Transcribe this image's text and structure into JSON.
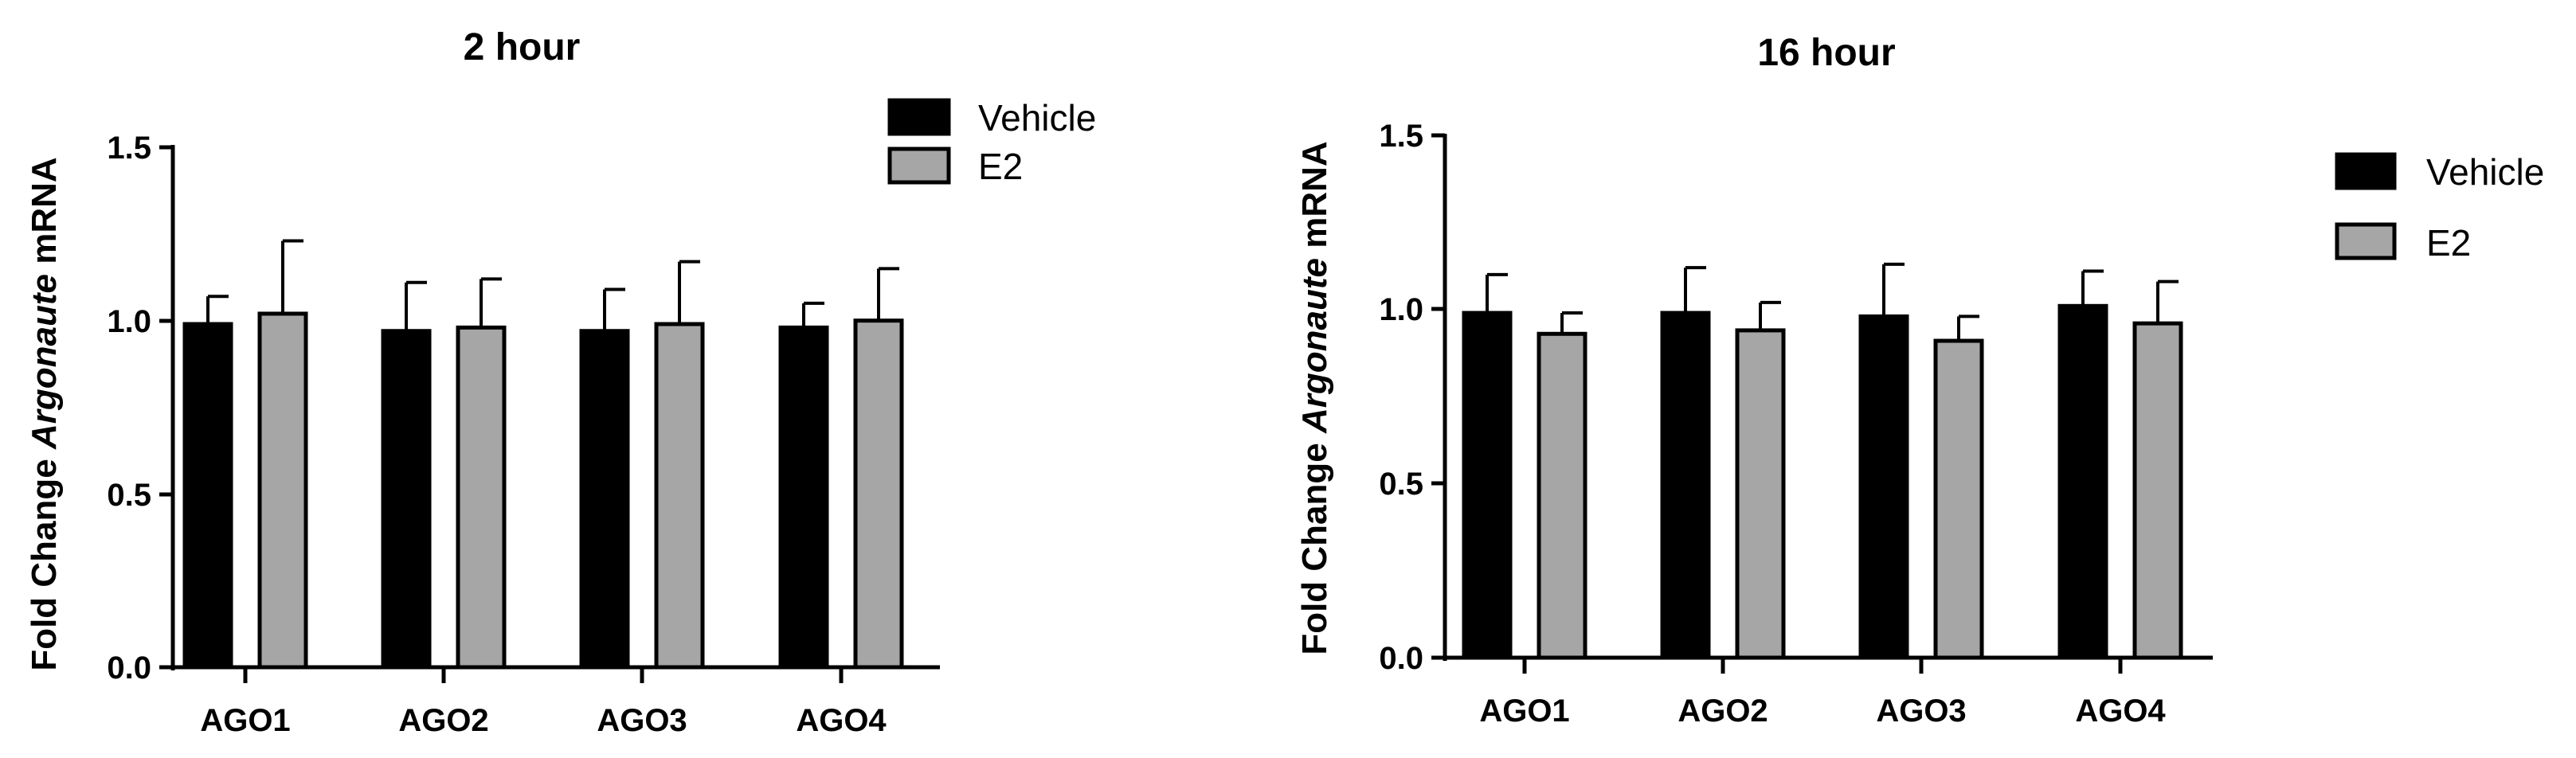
{
  "chart_data": [
    {
      "type": "bar",
      "title": "2 hour",
      "ylabel_prefix": "Fold Change ",
      "ylabel_italic": "Argonaute",
      "ylabel_suffix": " mRNA",
      "ylim": [
        0,
        1.5
      ],
      "yticks": [
        "0.0",
        "0.5",
        "1.0",
        "1.5"
      ],
      "categories": [
        "AGO1",
        "AGO2",
        "AGO3",
        "AGO4"
      ],
      "series": [
        {
          "name": "Vehicle",
          "color": "#000000",
          "values": [
            0.99,
            0.97,
            0.97,
            0.98
          ],
          "errors": [
            0.08,
            0.14,
            0.12,
            0.07
          ]
        },
        {
          "name": "E2",
          "color": "#a6a6a6",
          "values": [
            1.02,
            0.98,
            0.99,
            1.0
          ],
          "errors": [
            0.21,
            0.14,
            0.18,
            0.15
          ]
        }
      ],
      "legend": "top-right",
      "grid": false
    },
    {
      "type": "bar",
      "title": "16 hour",
      "ylabel_prefix": "Fold Change ",
      "ylabel_italic": "Argonaute",
      "ylabel_suffix": " mRNA",
      "ylim": [
        0,
        1.5
      ],
      "yticks": [
        "0.0",
        "0.5",
        "1.0",
        "1.5"
      ],
      "categories": [
        "AGO1",
        "AGO2",
        "AGO3",
        "AGO4"
      ],
      "series": [
        {
          "name": "Vehicle",
          "color": "#000000",
          "values": [
            0.99,
            0.99,
            0.98,
            1.01
          ],
          "errors": [
            0.11,
            0.13,
            0.15,
            0.1
          ]
        },
        {
          "name": "E2",
          "color": "#a6a6a6",
          "values": [
            0.93,
            0.94,
            0.91,
            0.96
          ],
          "errors": [
            0.06,
            0.08,
            0.07,
            0.12
          ]
        }
      ],
      "legend": "right",
      "grid": false
    }
  ]
}
